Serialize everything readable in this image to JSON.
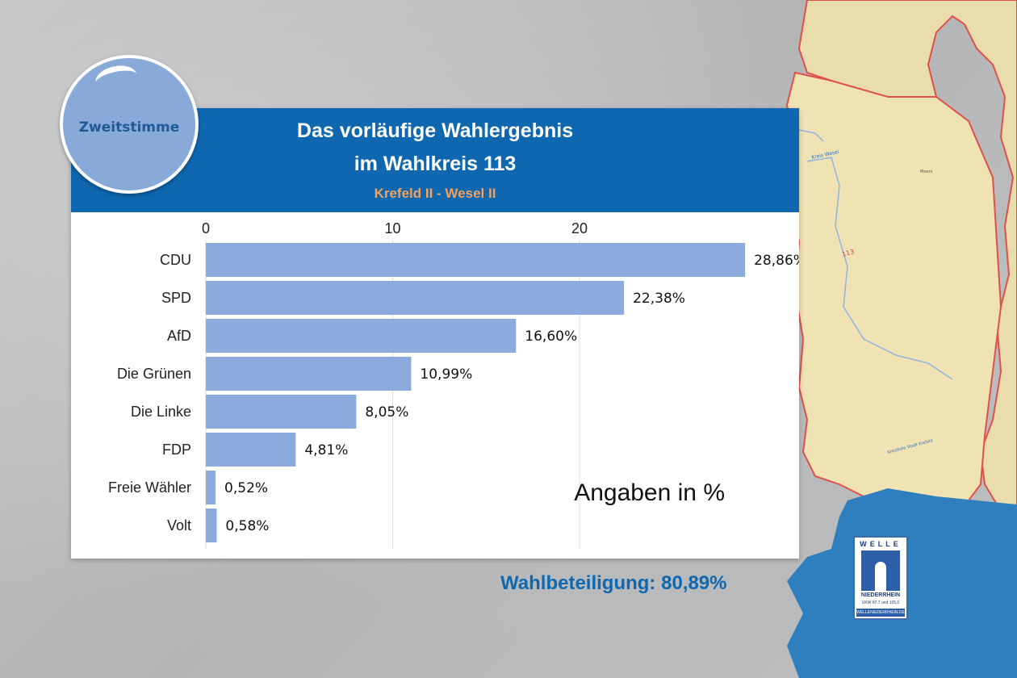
{
  "badge": {
    "label": "Zweitstimme"
  },
  "header": {
    "line1": "Das vorläufige Wahlergebnis",
    "line2": "im Wahlkreis 113",
    "subtitle": "Krefeld II - Wesel II"
  },
  "map": {
    "label_kreis": "Kreis Wesel",
    "label_moers": "Moers",
    "label_113": "113",
    "label_krefeld": "Kreisfreie Stadt Krefeld"
  },
  "turnout": "Wahlbeteiligung: 80,89%",
  "logo": {
    "top": "WELLE",
    "name": "NIEDERRHEIN",
    "freq": "UKW 87,7 und 105,6",
    "url": "WELLENIEDERRHEIN.DE"
  },
  "colors": {
    "header": "#0f67b0",
    "bar": "#8aabdc",
    "subtitle": "#f2a15e"
  },
  "chart_data": {
    "type": "bar",
    "orientation": "horizontal",
    "categories": [
      "CDU",
      "SPD",
      "AfD",
      "Die Grünen",
      "Die Linke",
      "FDP",
      "Freie Wähler",
      "Volt"
    ],
    "values": [
      28.86,
      22.38,
      16.6,
      10.99,
      8.05,
      4.81,
      0.52,
      0.58
    ],
    "value_labels": [
      "28,86%",
      "22,38%",
      "16,60%",
      "10,99%",
      "8,05%",
      "4,81%",
      "0,52%",
      "0,58%"
    ],
    "x_ticks": [
      0,
      10,
      20
    ],
    "xlim": [
      0,
      31.5
    ],
    "grid": true,
    "annotation": "Angaben in %"
  }
}
